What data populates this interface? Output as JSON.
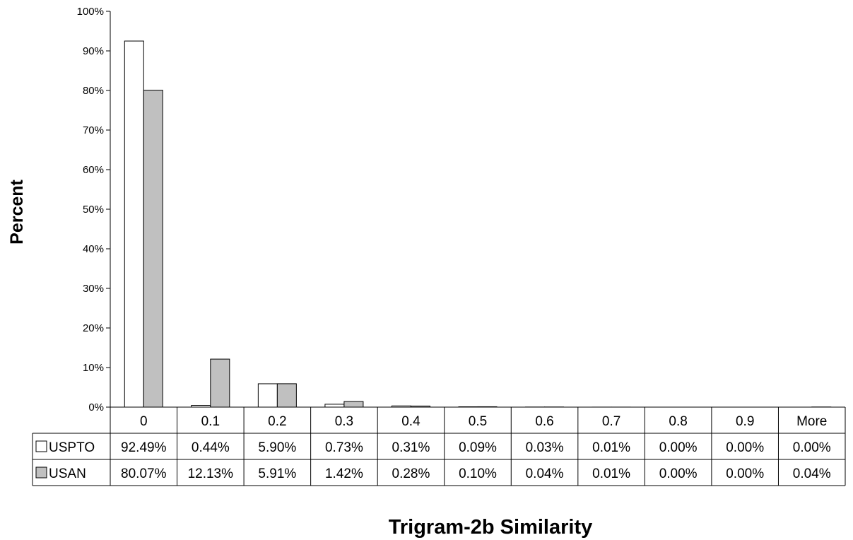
{
  "chart_data": {
    "type": "bar",
    "title": "",
    "xlabel": "Trigram-2b Similarity",
    "ylabel": "Percent",
    "ylim": [
      0,
      100
    ],
    "y_tick_labels": [
      "0%",
      "10%",
      "20%",
      "30%",
      "40%",
      "50%",
      "60%",
      "70%",
      "80%",
      "90%",
      "100%"
    ],
    "categories": [
      "0",
      "0.1",
      "0.2",
      "0.3",
      "0.4",
      "0.5",
      "0.6",
      "0.7",
      "0.8",
      "0.9",
      "More"
    ],
    "series": [
      {
        "name": "USPTO",
        "color": "#ffffff",
        "values": [
          92.49,
          0.44,
          5.9,
          0.73,
          0.31,
          0.09,
          0.03,
          0.01,
          0.0,
          0.0,
          0.0
        ],
        "labels": [
          "92.49%",
          "0.44%",
          "5.90%",
          "0.73%",
          "0.31%",
          "0.09%",
          "0.03%",
          "0.01%",
          "0.00%",
          "0.00%",
          "0.00%"
        ]
      },
      {
        "name": "USAN",
        "color": "#c0c0c0",
        "values": [
          80.07,
          12.13,
          5.91,
          1.42,
          0.28,
          0.1,
          0.04,
          0.01,
          0.0,
          0.0,
          0.04
        ],
        "labels": [
          "80.07%",
          "12.13%",
          "5.91%",
          "1.42%",
          "0.28%",
          "0.10%",
          "0.04%",
          "0.01%",
          "0.00%",
          "0.00%",
          "0.04%"
        ]
      }
    ],
    "grid": false,
    "legend": "data-table"
  }
}
